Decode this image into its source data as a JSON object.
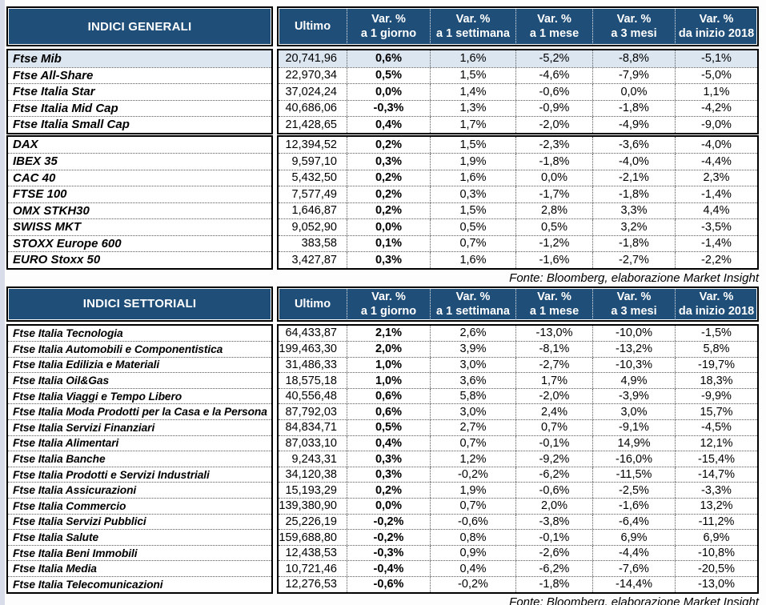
{
  "columns": [
    {
      "label": "Ultimo",
      "sub": ""
    },
    {
      "label": "Var. %",
      "sub": "a 1 giorno"
    },
    {
      "label": "Var. %",
      "sub": "a 1 settimana"
    },
    {
      "label": "Var. %",
      "sub": "a 1 mese"
    },
    {
      "label": "Var. %",
      "sub": "a 3 mesi"
    },
    {
      "label": "Var. %",
      "sub": "da inizio 2018"
    }
  ],
  "colors": {
    "header_bg": "#1F4E79",
    "highlight_row": "#DCE6F1"
  },
  "tables": [
    {
      "title": "INDICI GENERALI",
      "source": "Fonte: Bloomberg, elaborazione Market Insight",
      "blocks": [
        {
          "rows": [
            {
              "name": "Ftse Mib",
              "highlight": true,
              "values": [
                "20,741,96",
                "0,6%",
                "1,6%",
                "-5,2%",
                "-8,8%",
                "-5,1%"
              ]
            },
            {
              "name": "Ftse All-Share",
              "highlight": false,
              "values": [
                "22,970,34",
                "0,5%",
                "1,5%",
                "-4,6%",
                "-7,9%",
                "-5,0%"
              ]
            },
            {
              "name": "Ftse Italia Star",
              "highlight": false,
              "values": [
                "37,024,24",
                "0,0%",
                "1,4%",
                "-0,6%",
                "0,0%",
                "1,1%"
              ]
            },
            {
              "name": "Ftse Italia Mid Cap",
              "highlight": false,
              "values": [
                "40,686,06",
                "-0,3%",
                "1,3%",
                "-0,9%",
                "-1,8%",
                "-4,2%"
              ]
            },
            {
              "name": "Ftse Italia Small Cap",
              "highlight": false,
              "values": [
                "21,428,65",
                "0,4%",
                "1,7%",
                "-2,0%",
                "-4,9%",
                "-9,0%"
              ]
            }
          ]
        },
        {
          "rows": [
            {
              "name": "DAX",
              "highlight": false,
              "values": [
                "12,394,52",
                "0,2%",
                "1,5%",
                "-2,3%",
                "-3,6%",
                "-4,0%"
              ]
            },
            {
              "name": "IBEX 35",
              "highlight": false,
              "values": [
                "9,597,10",
                "0,3%",
                "1,9%",
                "-1,8%",
                "-4,0%",
                "-4,4%"
              ]
            },
            {
              "name": "CAC 40",
              "highlight": false,
              "values": [
                "5,432,50",
                "0,2%",
                "1,6%",
                "0,0%",
                "-2,1%",
                "2,3%"
              ]
            },
            {
              "name": "FTSE 100",
              "highlight": false,
              "values": [
                "7,577,49",
                "0,2%",
                "0,3%",
                "-1,7%",
                "-1,8%",
                "-1,4%"
              ]
            },
            {
              "name": "OMX STKH30",
              "highlight": false,
              "values": [
                "1,646,87",
                "0,2%",
                "1,5%",
                "2,8%",
                "3,3%",
                "4,4%"
              ]
            },
            {
              "name": "SWISS MKT",
              "highlight": false,
              "values": [
                "9,052,90",
                "0,0%",
                "0,5%",
                "0,5%",
                "3,2%",
                "-3,5%"
              ]
            },
            {
              "name": "STOXX Europe 600",
              "highlight": false,
              "values": [
                "383,58",
                "0,1%",
                "0,7%",
                "-1,2%",
                "-1,8%",
                "-1,4%"
              ]
            },
            {
              "name": "EURO Stoxx 50",
              "highlight": false,
              "values": [
                "3,427,87",
                "0,3%",
                "1,6%",
                "-1,6%",
                "-2,7%",
                "-2,2%"
              ]
            }
          ]
        }
      ]
    },
    {
      "title": "INDICI SETTORIALI",
      "source": "Fonte: Bloomberg, elaborazione Market Insight",
      "blocks": [
        {
          "rows": [
            {
              "name": "Ftse Italia Tecnologia",
              "highlight": false,
              "values": [
                "64,433,87",
                "2,1%",
                "2,6%",
                "-13,0%",
                "-10,0%",
                "-1,5%"
              ]
            },
            {
              "name": "Ftse Italia Automobili e Componentistica",
              "highlight": false,
              "values": [
                "199,463,30",
                "2,0%",
                "3,9%",
                "-8,1%",
                "-13,2%",
                "5,8%"
              ]
            },
            {
              "name": "Ftse Italia Edilizia e Materiali",
              "highlight": false,
              "values": [
                "31,486,33",
                "1,0%",
                "3,0%",
                "-2,7%",
                "-10,3%",
                "-19,7%"
              ]
            },
            {
              "name": "Ftse Italia Oil&Gas",
              "highlight": false,
              "values": [
                "18,575,18",
                "1,0%",
                "3,6%",
                "1,7%",
                "4,9%",
                "18,3%"
              ]
            },
            {
              "name": "Ftse Italia Viaggi e Tempo Libero",
              "highlight": false,
              "values": [
                "40,556,48",
                "0,6%",
                "5,8%",
                "-2,0%",
                "-3,9%",
                "-9,9%"
              ]
            },
            {
              "name": "Ftse Italia Moda Prodotti per la Casa e la Persona",
              "highlight": false,
              "values": [
                "87,792,03",
                "0,6%",
                "3,0%",
                "2,4%",
                "3,0%",
                "15,7%"
              ]
            },
            {
              "name": "Ftse Italia Servizi Finanziari",
              "highlight": false,
              "values": [
                "84,834,71",
                "0,5%",
                "2,7%",
                "0,7%",
                "-9,1%",
                "-4,5%"
              ]
            },
            {
              "name": "Ftse Italia Alimentari",
              "highlight": false,
              "values": [
                "87,033,10",
                "0,4%",
                "0,7%",
                "-0,1%",
                "14,9%",
                "12,1%"
              ]
            },
            {
              "name": "Ftse Italia Banche",
              "highlight": false,
              "values": [
                "9,243,31",
                "0,3%",
                "1,2%",
                "-9,2%",
                "-16,0%",
                "-15,4%"
              ]
            },
            {
              "name": "Ftse Italia Prodotti e Servizi Industriali",
              "highlight": false,
              "values": [
                "34,120,38",
                "0,3%",
                "-0,2%",
                "-6,2%",
                "-11,5%",
                "-14,7%"
              ]
            },
            {
              "name": "Ftse Italia Assicurazioni",
              "highlight": false,
              "values": [
                "15,193,29",
                "0,2%",
                "1,9%",
                "-0,6%",
                "-2,5%",
                "-3,3%"
              ]
            },
            {
              "name": "Ftse Italia Commercio",
              "highlight": false,
              "values": [
                "139,380,90",
                "0,0%",
                "0,7%",
                "2,0%",
                "-1,6%",
                "13,2%"
              ]
            },
            {
              "name": "Ftse Italia Servizi Pubblici",
              "highlight": false,
              "values": [
                "25,226,19",
                "-0,2%",
                "-0,6%",
                "-3,8%",
                "-6,4%",
                "-11,2%"
              ]
            },
            {
              "name": "Ftse Italia Salute",
              "highlight": false,
              "values": [
                "159,688,80",
                "-0,2%",
                "0,8%",
                "-0,1%",
                "6,9%",
                "6,9%"
              ]
            },
            {
              "name": "Ftse Italia Beni Immobili",
              "highlight": false,
              "values": [
                "12,438,53",
                "-0,3%",
                "0,9%",
                "-2,6%",
                "-4,4%",
                "-10,8%"
              ]
            },
            {
              "name": "Ftse Italia Media",
              "highlight": false,
              "values": [
                "10,721,46",
                "-0,4%",
                "0,4%",
                "-6,2%",
                "-7,6%",
                "-20,5%"
              ]
            },
            {
              "name": "Ftse Italia Telecomunicazioni",
              "highlight": false,
              "values": [
                "12,276,53",
                "-0,6%",
                "-0,2%",
                "-1,8%",
                "-14,4%",
                "-13,0%"
              ]
            }
          ]
        }
      ]
    }
  ]
}
